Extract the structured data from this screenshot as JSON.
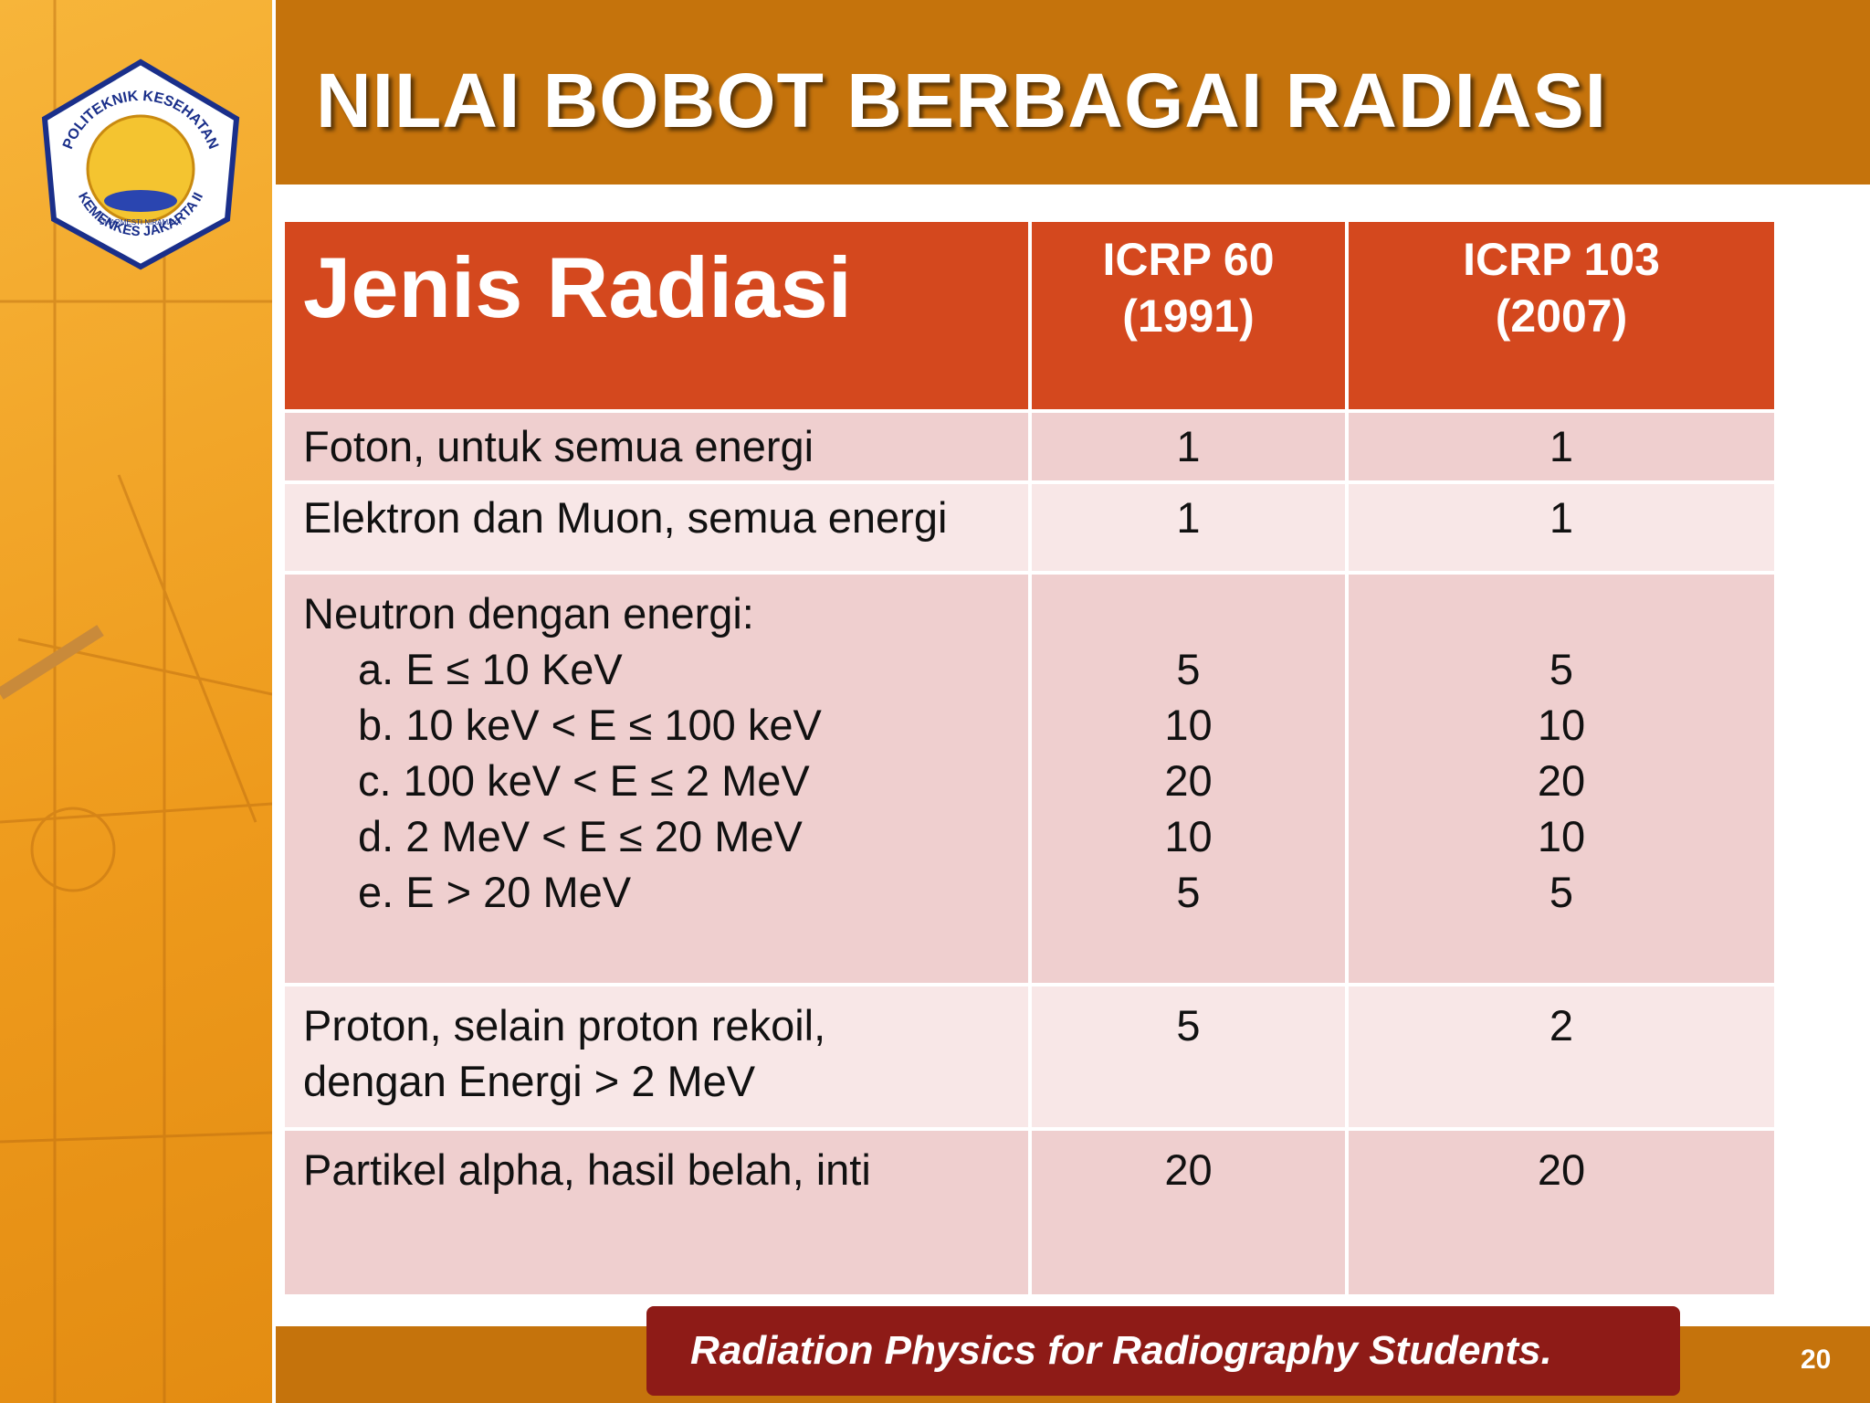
{
  "header": {
    "title": "NILAI BOBOT BERBAGAI RADIASI"
  },
  "logo": {
    "top_text": "POLITEKNIK KESEHATAN",
    "bottom_text": "KEMENKES JAKARTA II",
    "motto": "DHARMESTI NIRAMAYA"
  },
  "table": {
    "columns": [
      "Jenis Radiasi",
      "ICRP 60 (1991)",
      "ICRP 103 (2007)"
    ],
    "rows": [
      {
        "label": [
          "Foton, untuk semua energi"
        ],
        "icrp60": 1,
        "icrp103": 1
      },
      {
        "label": [
          "Elektron dan Muon, semua energi"
        ],
        "icrp60": 1,
        "icrp103": 1
      },
      {
        "label": [
          "Neutron dengan energi:"
        ],
        "items": [
          {
            "label": "a. E ≤ 10 KeV",
            "icrp60": 5,
            "icrp103": 5
          },
          {
            "label": "b. 10 keV < E ≤ 100 keV",
            "icrp60": 10,
            "icrp103": 10
          },
          {
            "label": "c. 100 keV < E ≤ 2 MeV",
            "icrp60": 20,
            "icrp103": 20
          },
          {
            "label": "d. 2 MeV < E ≤ 20 MeV",
            "icrp60": 10,
            "icrp103": 10
          },
          {
            "label": "e. E > 20 MeV",
            "icrp60": 5,
            "icrp103": 5
          }
        ]
      },
      {
        "label": [
          "Proton, selain proton rekoil,",
          "dengan  Energi > 2 MeV"
        ],
        "icrp60": 5,
        "icrp103": 2
      },
      {
        "label": [
          "Partikel alpha, hasil belah, inti"
        ],
        "icrp60": 20,
        "icrp103": 20
      }
    ]
  },
  "footer": {
    "banner": "Radiation Physics for Radiography Students.",
    "page_number": "20"
  }
}
